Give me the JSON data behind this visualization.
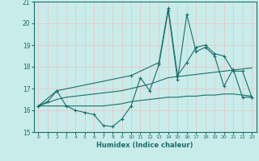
{
  "xlabel": "Humidex (Indice chaleur)",
  "background_color": "#c8ecea",
  "grid_color": "#e8c8c8",
  "line_color": "#1a6e6a",
  "xlim": [
    -0.5,
    23.5
  ],
  "ylim": [
    15,
    21
  ],
  "yticks": [
    15,
    16,
    17,
    18,
    19,
    20,
    21
  ],
  "xticks": [
    0,
    1,
    2,
    3,
    4,
    5,
    6,
    7,
    8,
    9,
    10,
    11,
    12,
    13,
    14,
    15,
    16,
    17,
    18,
    19,
    20,
    21,
    22,
    23
  ],
  "series1_x": [
    0,
    1,
    2,
    3,
    4,
    5,
    6,
    7,
    8,
    9,
    10,
    11,
    12,
    13,
    14,
    15,
    16,
    17,
    18,
    19,
    20,
    21,
    22,
    23
  ],
  "series1_y": [
    16.2,
    16.4,
    16.9,
    16.2,
    16.0,
    15.9,
    15.8,
    15.3,
    15.25,
    15.6,
    16.2,
    17.5,
    16.9,
    18.1,
    20.6,
    17.4,
    20.4,
    18.7,
    18.9,
    18.5,
    17.1,
    17.9,
    16.6,
    16.6
  ],
  "series2_x": [
    0,
    1,
    2,
    3,
    4,
    5,
    6,
    7,
    8,
    9,
    10,
    11,
    12,
    13,
    14,
    15,
    16,
    17,
    18,
    19,
    20,
    21,
    22,
    23
  ],
  "series2_y": [
    16.2,
    16.35,
    16.5,
    16.6,
    16.65,
    16.7,
    16.75,
    16.8,
    16.85,
    16.9,
    17.0,
    17.1,
    17.2,
    17.35,
    17.5,
    17.55,
    17.6,
    17.65,
    17.7,
    17.75,
    17.8,
    17.85,
    17.9,
    17.95
  ],
  "series3_x": [
    0,
    1,
    2,
    3,
    4,
    5,
    6,
    7,
    8,
    9,
    10,
    11,
    12,
    13,
    14,
    15,
    16,
    17,
    18,
    19,
    20,
    21,
    22,
    23
  ],
  "series3_y": [
    16.2,
    16.2,
    16.2,
    16.2,
    16.2,
    16.2,
    16.2,
    16.2,
    16.25,
    16.3,
    16.4,
    16.45,
    16.5,
    16.55,
    16.6,
    16.6,
    16.65,
    16.65,
    16.7,
    16.7,
    16.75,
    16.75,
    16.7,
    16.65
  ],
  "series4_x": [
    0,
    2,
    10,
    13,
    14,
    15,
    16,
    17,
    18,
    19,
    20,
    21,
    22,
    23
  ],
  "series4_y": [
    16.2,
    16.9,
    17.6,
    18.2,
    20.7,
    17.6,
    18.2,
    18.9,
    19.0,
    18.6,
    18.5,
    17.8,
    17.8,
    16.6
  ]
}
